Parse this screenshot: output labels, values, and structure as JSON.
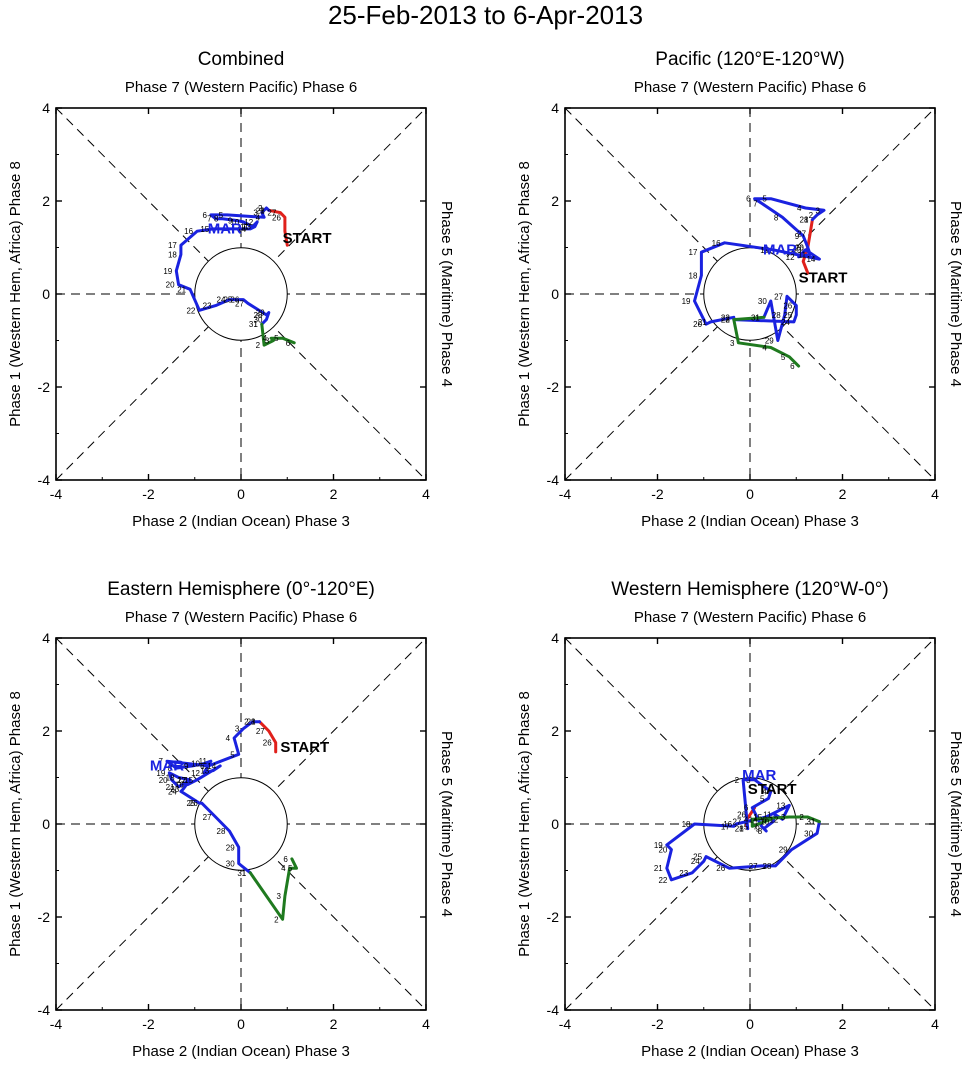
{
  "title": "25-Feb-2013 to 6-Apr-2013",
  "axis_labels": {
    "top": "Phase 7 (Western Pacific) Phase 6",
    "bottom": "Phase 2 (Indian Ocean) Phase 3",
    "left": "Phase 1 (Western Hem, Africa) Phase 8",
    "right": "Phase 5 (Maritime) Phase 4"
  },
  "colors": {
    "feb": "#e0201b",
    "mar": "#1a22e0",
    "apr": "#1f7a1f",
    "axis": "#000000"
  },
  "chart_data": [
    {
      "type": "line",
      "title": "Combined",
      "xlim": [
        -4,
        4
      ],
      "ylim": [
        -4,
        4
      ],
      "xticks": [
        -4,
        -2,
        0,
        2,
        4
      ],
      "yticks": [
        -4,
        -2,
        0,
        2,
        4
      ],
      "start_label": "START",
      "start_pos": [
        0.9,
        1.1
      ],
      "month_label": "MAR",
      "month_pos": [
        -0.35,
        1.3
      ],
      "series": [
        {
          "name": "Feb",
          "color": "#e0201b",
          "points": [
            [
              1.0,
              1.05,
              ""
            ],
            [
              0.95,
              1.35,
              ""
            ],
            [
              0.95,
              1.65,
              "26"
            ],
            [
              0.85,
              1.75,
              "27"
            ],
            [
              0.6,
              1.8,
              "28"
            ]
          ]
        },
        {
          "name": "Mar",
          "color": "#1a22e0",
          "points": [
            [
              0.6,
              1.8,
              "1"
            ],
            [
              0.55,
              1.85,
              "2"
            ],
            [
              0.45,
              1.75,
              "3"
            ],
            [
              0.5,
              1.65,
              "4"
            ],
            [
              -0.3,
              1.7,
              "5"
            ],
            [
              -0.65,
              1.7,
              "6"
            ],
            [
              -0.55,
              1.62,
              "7"
            ],
            [
              -0.4,
              1.62,
              "8"
            ],
            [
              -0.1,
              1.58,
              "9"
            ],
            [
              0.05,
              1.55,
              "10"
            ],
            [
              0.25,
              1.45,
              "11"
            ],
            [
              0.35,
              1.55,
              "12"
            ],
            [
              0.3,
              1.45,
              "13"
            ],
            [
              0.2,
              1.4,
              "14"
            ],
            [
              -0.6,
              1.4,
              "15"
            ],
            [
              -0.95,
              1.35,
              "16"
            ],
            [
              -1.3,
              1.05,
              "17"
            ],
            [
              -1.3,
              0.85,
              "18"
            ],
            [
              -1.4,
              0.5,
              "19"
            ],
            [
              -1.35,
              0.2,
              "20"
            ],
            [
              -1.1,
              0.1,
              "21"
            ],
            [
              -0.9,
              -0.35,
              "22"
            ],
            [
              -0.55,
              -0.25,
              "23"
            ],
            [
              -0.25,
              -0.12,
              "24"
            ],
            [
              -0.1,
              -0.12,
              "25"
            ],
            [
              0.05,
              -0.12,
              "26"
            ],
            [
              0.15,
              -0.2,
              "27"
            ],
            [
              0.55,
              -0.45,
              "28"
            ],
            [
              0.6,
              -0.4,
              "29"
            ],
            [
              0.55,
              -0.55,
              "30"
            ],
            [
              0.45,
              -0.65,
              "31"
            ]
          ]
        },
        {
          "name": "Apr",
          "color": "#1f7a1f",
          "points": [
            [
              0.45,
              -0.65,
              "1"
            ],
            [
              0.5,
              -1.1,
              "2"
            ],
            [
              0.7,
              -1.0,
              "3"
            ],
            [
              0.65,
              -0.95,
              "4"
            ],
            [
              0.9,
              -0.95,
              "5"
            ],
            [
              1.15,
              -1.05,
              "6"
            ]
          ]
        }
      ]
    },
    {
      "type": "line",
      "title": "Pacific (120°E-120°W)",
      "xlim": [
        -4,
        4
      ],
      "ylim": [
        -4,
        4
      ],
      "xticks": [
        -4,
        -2,
        0,
        2,
        4
      ],
      "yticks": [
        -4,
        -2,
        0,
        2,
        4
      ],
      "start_label": "START",
      "start_pos": [
        1.05,
        0.25
      ],
      "month_label": "MAR",
      "month_pos": [
        0.65,
        0.85
      ],
      "series": [
        {
          "name": "Feb",
          "color": "#e0201b",
          "points": [
            [
              1.25,
              0.45,
              ""
            ],
            [
              1.15,
              0.7,
              ""
            ],
            [
              1.25,
              1.0,
              "26"
            ],
            [
              1.3,
              1.3,
              "27"
            ],
            [
              1.35,
              1.6,
              "28"
            ]
          ]
        },
        {
          "name": "Mar",
          "color": "#1a22e0",
          "points": [
            [
              1.35,
              1.6,
              "1"
            ],
            [
              1.45,
              1.7,
              "2"
            ],
            [
              1.6,
              1.8,
              "3"
            ],
            [
              1.2,
              1.85,
              "4"
            ],
            [
              0.45,
              2.05,
              "5"
            ],
            [
              0.1,
              2.05,
              "6"
            ],
            [
              0.25,
              1.95,
              "7"
            ],
            [
              0.7,
              1.65,
              "8"
            ],
            [
              1.15,
              1.25,
              "9"
            ],
            [
              1.25,
              1.0,
              "10"
            ],
            [
              1.3,
              0.85,
              "11"
            ],
            [
              1.05,
              0.8,
              "12"
            ],
            [
              1.2,
              0.95,
              "13"
            ],
            [
              1.5,
              0.75,
              "14"
            ],
            [
              0.5,
              0.95,
              "15"
            ],
            [
              -0.55,
              1.1,
              "16"
            ],
            [
              -1.05,
              0.9,
              "17"
            ],
            [
              -1.05,
              0.4,
              "18"
            ],
            [
              -1.2,
              -0.15,
              "19"
            ],
            [
              -0.95,
              -0.65,
              "20"
            ],
            [
              -0.85,
              -0.6,
              "21"
            ],
            [
              -0.35,
              -0.5,
              "22"
            ],
            [
              -0.35,
              -0.55,
              "23"
            ],
            [
              0.95,
              -0.6,
              "24"
            ],
            [
              1.0,
              -0.45,
              "25"
            ],
            [
              1.0,
              -0.25,
              "26"
            ],
            [
              0.8,
              -0.05,
              "27"
            ],
            [
              0.75,
              -0.45,
              "28"
            ],
            [
              0.6,
              -1.0,
              "29"
            ],
            [
              0.45,
              -0.15,
              "30"
            ],
            [
              0.3,
              -0.5,
              "31"
            ]
          ]
        },
        {
          "name": "Apr",
          "color": "#1f7a1f",
          "points": [
            [
              0.3,
              -0.5,
              "1"
            ],
            [
              -0.35,
              -0.55,
              "2"
            ],
            [
              -0.25,
              -1.05,
              "3"
            ],
            [
              0.45,
              -1.15,
              "4"
            ],
            [
              0.85,
              -1.35,
              "5"
            ],
            [
              1.05,
              -1.55,
              "6"
            ]
          ]
        }
      ]
    },
    {
      "type": "line",
      "title": "Eastern Hemisphere (0°-120°E)",
      "xlim": [
        -4,
        4
      ],
      "ylim": [
        -4,
        4
      ],
      "xticks": [
        -4,
        -2,
        0,
        2,
        4
      ],
      "yticks": [
        -4,
        -2,
        0,
        2,
        4
      ],
      "start_label": "START",
      "start_pos": [
        0.85,
        1.55
      ],
      "month_label": "MAR",
      "month_pos": [
        -1.6,
        1.15
      ],
      "series": [
        {
          "name": "Feb",
          "color": "#e0201b",
          "points": [
            [
              0.75,
              1.55,
              ""
            ],
            [
              0.75,
              1.75,
              "26"
            ],
            [
              0.6,
              2.0,
              "27"
            ],
            [
              0.4,
              2.2,
              "28"
            ]
          ]
        },
        {
          "name": "Mar",
          "color": "#1a22e0",
          "points": [
            [
              0.4,
              2.2,
              "1"
            ],
            [
              0.25,
              2.2,
              "2"
            ],
            [
              0.05,
              2.05,
              "3"
            ],
            [
              -0.15,
              1.85,
              "4"
            ],
            [
              -0.05,
              1.5,
              "5"
            ],
            [
              -0.7,
              1.25,
              "6"
            ],
            [
              -1.6,
              1.35,
              "7"
            ],
            [
              -1.4,
              1.2,
              "8"
            ],
            [
              -1.05,
              1.25,
              "9"
            ],
            [
              -0.8,
              1.3,
              "10"
            ],
            [
              -0.65,
              1.35,
              "11"
            ],
            [
              -0.8,
              1.1,
              "12"
            ],
            [
              -0.6,
              1.15,
              "13"
            ],
            [
              -0.45,
              1.25,
              "14"
            ],
            [
              -0.95,
              0.95,
              "15"
            ],
            [
              -1.15,
              0.85,
              "16"
            ],
            [
              -1.1,
              0.95,
              "17"
            ],
            [
              -1.35,
              1.0,
              "18"
            ],
            [
              -1.55,
              1.1,
              "19"
            ],
            [
              -1.5,
              0.95,
              "20"
            ],
            [
              -1.35,
              0.8,
              "21"
            ],
            [
              -1.1,
              0.95,
              "22"
            ],
            [
              -1.25,
              0.75,
              "23"
            ],
            [
              -1.3,
              0.7,
              "24"
            ],
            [
              -0.9,
              0.45,
              "25"
            ],
            [
              -0.85,
              0.45,
              "26"
            ],
            [
              -0.55,
              0.15,
              "27"
            ],
            [
              -0.25,
              -0.15,
              "28"
            ],
            [
              -0.05,
              -0.5,
              "29"
            ],
            [
              -0.05,
              -0.85,
              "30"
            ],
            [
              0.2,
              -1.05,
              "31"
            ]
          ]
        },
        {
          "name": "Apr",
          "color": "#1f7a1f",
          "points": [
            [
              0.2,
              -1.05,
              "1"
            ],
            [
              0.9,
              -2.05,
              "2"
            ],
            [
              0.95,
              -1.55,
              "3"
            ],
            [
              1.05,
              -0.95,
              "4"
            ],
            [
              1.2,
              -0.95,
              "5"
            ],
            [
              1.1,
              -0.75,
              "6"
            ]
          ]
        }
      ]
    },
    {
      "type": "line",
      "title": "Western Hemisphere (120°W-0°)",
      "xlim": [
        -4,
        4
      ],
      "ylim": [
        -4,
        4
      ],
      "xticks": [
        -4,
        -2,
        0,
        2,
        4
      ],
      "yticks": [
        -4,
        -2,
        0,
        2,
        4
      ],
      "start_label": "START",
      "start_pos": [
        -0.05,
        0.65
      ],
      "month_label": "MAR",
      "month_pos": [
        0.2,
        0.95
      ],
      "series": [
        {
          "name": "Feb",
          "color": "#e0201b",
          "points": [
            [
              0.1,
              0.35,
              ""
            ],
            [
              0.0,
              0.2,
              "26"
            ],
            [
              -0.1,
              0.05,
              "27"
            ],
            [
              -0.05,
              -0.1,
              "28"
            ]
          ]
        },
        {
          "name": "Mar",
          "color": "#1a22e0",
          "points": [
            [
              -0.05,
              -0.1,
              "1"
            ],
            [
              -0.15,
              0.95,
              "2"
            ],
            [
              0.1,
              0.95,
              "3"
            ],
            [
              0.45,
              0.7,
              "4"
            ],
            [
              0.4,
              0.55,
              "5"
            ],
            [
              0.05,
              0.35,
              "6"
            ],
            [
              0.25,
              -0.05,
              "7"
            ],
            [
              0.35,
              -0.15,
              "8"
            ],
            [
              0.3,
              -0.1,
              "9"
            ],
            [
              0.5,
              0.05,
              "10"
            ],
            [
              0.55,
              0.2,
              "11"
            ],
            [
              0.7,
              0.1,
              "12"
            ],
            [
              0.85,
              0.4,
              "13"
            ],
            [
              0.25,
              0.1,
              "14"
            ],
            [
              0.35,
              0.15,
              "15"
            ],
            [
              -0.3,
              0.0,
              "16"
            ],
            [
              -0.35,
              -0.05,
              "17"
            ],
            [
              -1.2,
              0.0,
              "18"
            ],
            [
              -1.8,
              -0.45,
              "19"
            ],
            [
              -1.7,
              -0.55,
              "20"
            ],
            [
              -1.8,
              -0.95,
              "21"
            ],
            [
              -1.7,
              -1.2,
              "22"
            ],
            [
              -1.25,
              -1.05,
              "23"
            ],
            [
              -1.0,
              -0.8,
              "24"
            ],
            [
              -0.95,
              -0.7,
              "25"
            ],
            [
              -0.45,
              -0.95,
              "26"
            ],
            [
              0.25,
              -0.9,
              "27"
            ],
            [
              0.55,
              -0.9,
              "28"
            ],
            [
              0.9,
              -0.55,
              "29"
            ],
            [
              1.45,
              -0.2,
              "30"
            ],
            [
              1.5,
              0.05,
              "31"
            ]
          ]
        },
        {
          "name": "Apr",
          "color": "#1f7a1f",
          "points": [
            [
              1.5,
              0.05,
              "1"
            ],
            [
              1.25,
              0.15,
              "2"
            ],
            [
              0.85,
              0.15,
              "3"
            ],
            [
              0.05,
              0.1,
              "4"
            ],
            [
              0.05,
              -0.05,
              "5"
            ],
            [
              0.45,
              0.1,
              "6"
            ]
          ]
        }
      ]
    }
  ]
}
